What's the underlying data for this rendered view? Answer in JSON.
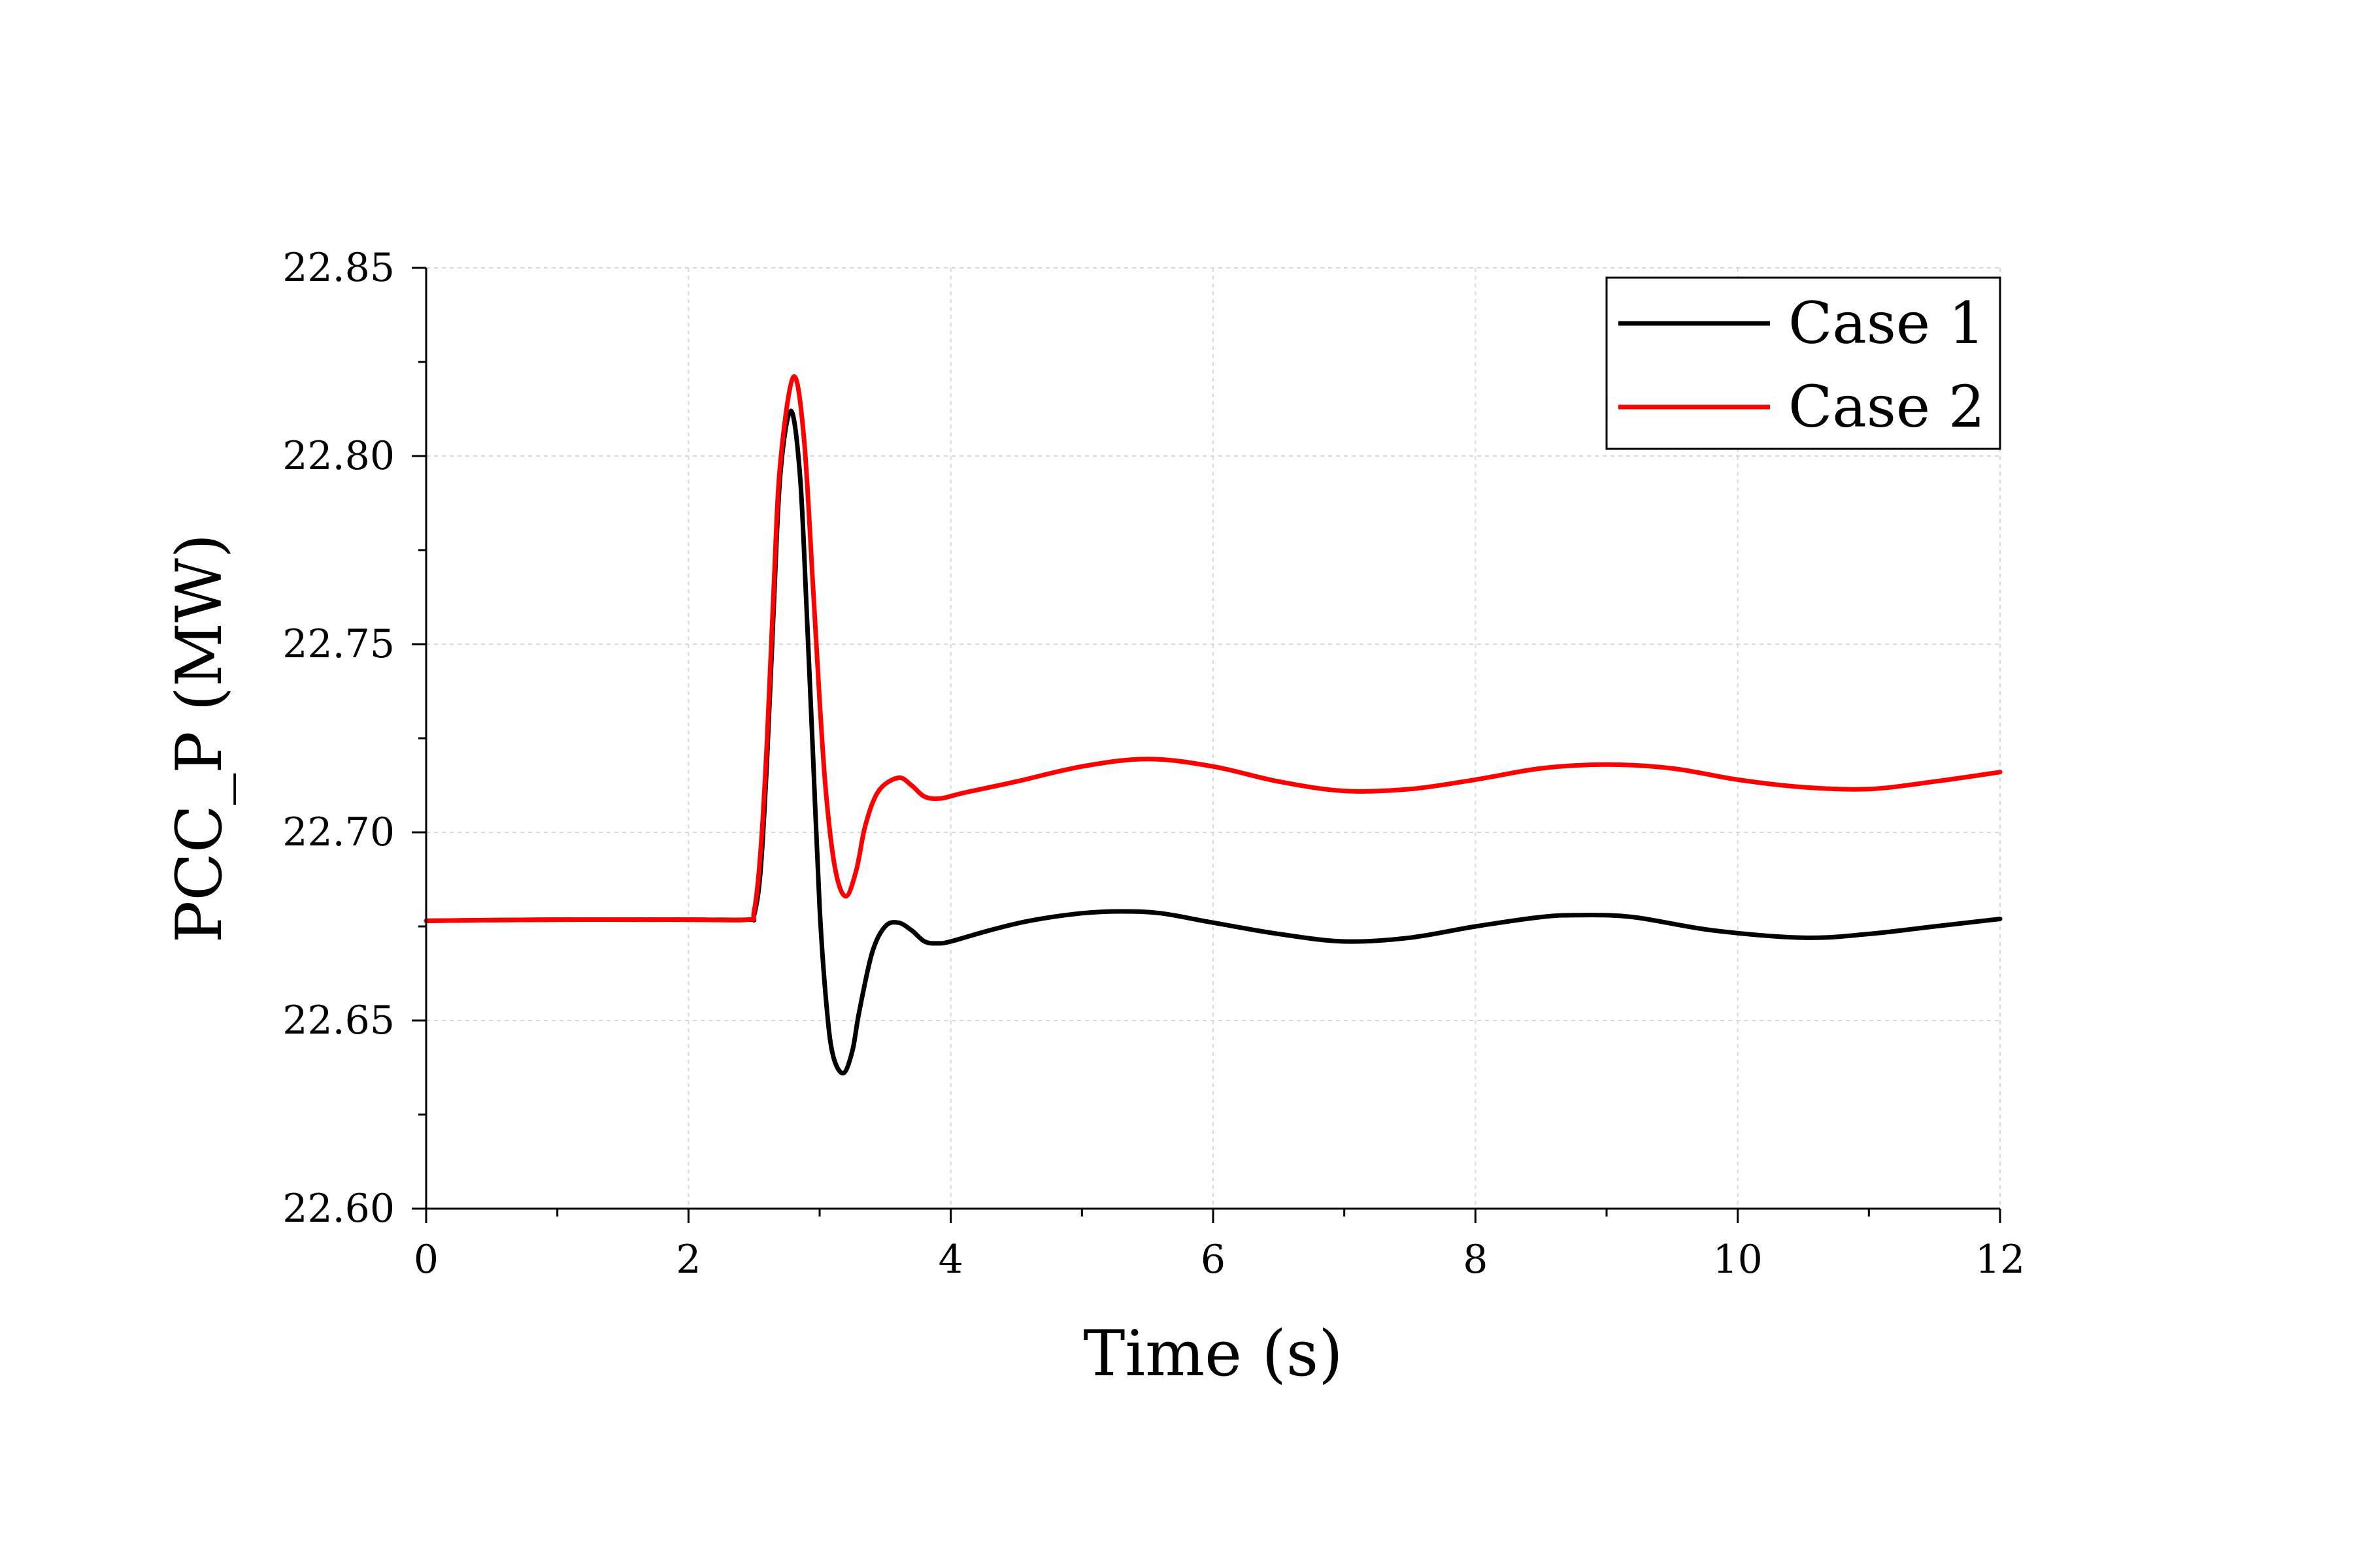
{
  "chart_data": {
    "type": "line",
    "title": "",
    "xlabel": "Time (s)",
    "ylabel": "PCC_P (MW)",
    "xlim": [
      0,
      12
    ],
    "ylim": [
      22.6,
      22.85
    ],
    "x_ticks": [
      "0",
      "2",
      "4",
      "6",
      "8",
      "10",
      "12"
    ],
    "y_ticks": [
      "22.60",
      "22.65",
      "22.70",
      "22.75",
      "22.80",
      "22.85"
    ],
    "grid": true,
    "legend_position": "top-right",
    "series": [
      {
        "name": "Case 1",
        "color": "#000000",
        "points": [
          [
            0,
            22.6765
          ],
          [
            1,
            22.6768
          ],
          [
            2,
            22.6768
          ],
          [
            2.45,
            22.6768
          ],
          [
            2.5,
            22.678
          ],
          [
            2.55,
            22.69
          ],
          [
            2.6,
            22.72
          ],
          [
            2.65,
            22.76
          ],
          [
            2.7,
            22.795
          ],
          [
            2.78,
            22.812
          ],
          [
            2.85,
            22.795
          ],
          [
            2.9,
            22.76
          ],
          [
            2.95,
            22.72
          ],
          [
            3.0,
            22.68
          ],
          [
            3.05,
            22.655
          ],
          [
            3.1,
            22.641
          ],
          [
            3.18,
            22.636
          ],
          [
            3.25,
            22.642
          ],
          [
            3.3,
            22.652
          ],
          [
            3.4,
            22.668
          ],
          [
            3.5,
            22.675
          ],
          [
            3.6,
            22.676
          ],
          [
            3.7,
            22.674
          ],
          [
            3.8,
            22.671
          ],
          [
            3.9,
            22.6705
          ],
          [
            4.0,
            22.671
          ],
          [
            4.3,
            22.674
          ],
          [
            4.6,
            22.6765
          ],
          [
            5.0,
            22.6785
          ],
          [
            5.3,
            22.679
          ],
          [
            5.6,
            22.6785
          ],
          [
            6.0,
            22.676
          ],
          [
            6.5,
            22.673
          ],
          [
            7.0,
            22.671
          ],
          [
            7.5,
            22.672
          ],
          [
            8.0,
            22.675
          ],
          [
            8.5,
            22.6775
          ],
          [
            8.8,
            22.678
          ],
          [
            9.2,
            22.6775
          ],
          [
            9.8,
            22.674
          ],
          [
            10.5,
            22.672
          ],
          [
            11.0,
            22.673
          ],
          [
            11.5,
            22.675
          ],
          [
            12.0,
            22.677
          ]
        ]
      },
      {
        "name": "Case 2",
        "color": "#ff0000",
        "points": [
          [
            0,
            22.6765
          ],
          [
            1,
            22.6768
          ],
          [
            2,
            22.6768
          ],
          [
            2.45,
            22.6768
          ],
          [
            2.5,
            22.679
          ],
          [
            2.55,
            22.695
          ],
          [
            2.6,
            22.725
          ],
          [
            2.65,
            22.765
          ],
          [
            2.7,
            22.798
          ],
          [
            2.8,
            22.821
          ],
          [
            2.88,
            22.805
          ],
          [
            2.95,
            22.765
          ],
          [
            3.0,
            22.735
          ],
          [
            3.05,
            22.71
          ],
          [
            3.12,
            22.69
          ],
          [
            3.2,
            22.683
          ],
          [
            3.28,
            22.69
          ],
          [
            3.35,
            22.702
          ],
          [
            3.45,
            22.711
          ],
          [
            3.6,
            22.7145
          ],
          [
            3.7,
            22.7125
          ],
          [
            3.8,
            22.7095
          ],
          [
            3.92,
            22.709
          ],
          [
            4.1,
            22.7105
          ],
          [
            4.5,
            22.7135
          ],
          [
            5.0,
            22.7175
          ],
          [
            5.5,
            22.7195
          ],
          [
            6.0,
            22.7175
          ],
          [
            6.5,
            22.7135
          ],
          [
            7.0,
            22.711
          ],
          [
            7.5,
            22.7115
          ],
          [
            8.0,
            22.714
          ],
          [
            8.5,
            22.717
          ],
          [
            9.0,
            22.718
          ],
          [
            9.5,
            22.717
          ],
          [
            10.0,
            22.714
          ],
          [
            10.5,
            22.712
          ],
          [
            11.0,
            22.7115
          ],
          [
            11.5,
            22.7135
          ],
          [
            12.0,
            22.716
          ]
        ]
      }
    ]
  }
}
